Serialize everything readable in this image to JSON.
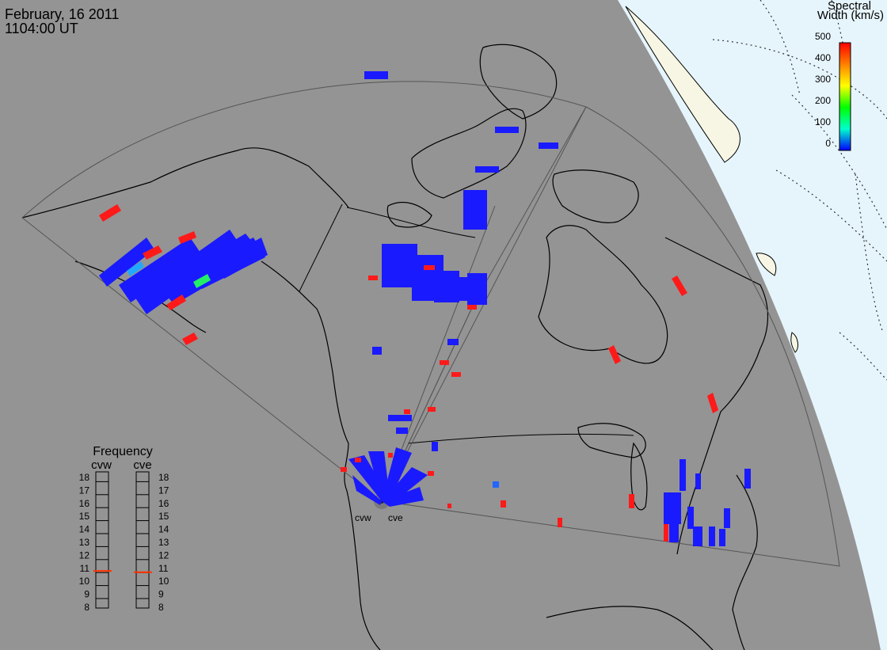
{
  "header": {
    "date": "February, 16 2011",
    "time": "1104:00 UT"
  },
  "colorbar": {
    "title_line1": "Spectral",
    "title_line2": "Width (km/s)",
    "ticks": [
      "500",
      "400",
      "300",
      "200",
      "100",
      "0"
    ],
    "colors": [
      "#ff0000",
      "#ff8000",
      "#ffff00",
      "#00ff00",
      "#00ffcc",
      "#0000ff"
    ]
  },
  "radars": {
    "west_label": "cvw",
    "east_label": "cve"
  },
  "frequency_panel": {
    "title": "Frequency",
    "col1_label": "cvw",
    "col2_label": "cve",
    "scale": [
      "18",
      "17",
      "16",
      "15",
      "14",
      "13",
      "12",
      "11",
      "10",
      "9",
      "8"
    ],
    "cvw_value": 10.8,
    "cve_value": 10.7,
    "marker_color": "#ff3300"
  },
  "colors": {
    "map_background": "#949494",
    "daylight": "#e6f5fc",
    "land_daylight": "#f7f6e4",
    "coastline": "#000000",
    "fov_outline": "#555555",
    "dotted_grid": "#333333"
  }
}
